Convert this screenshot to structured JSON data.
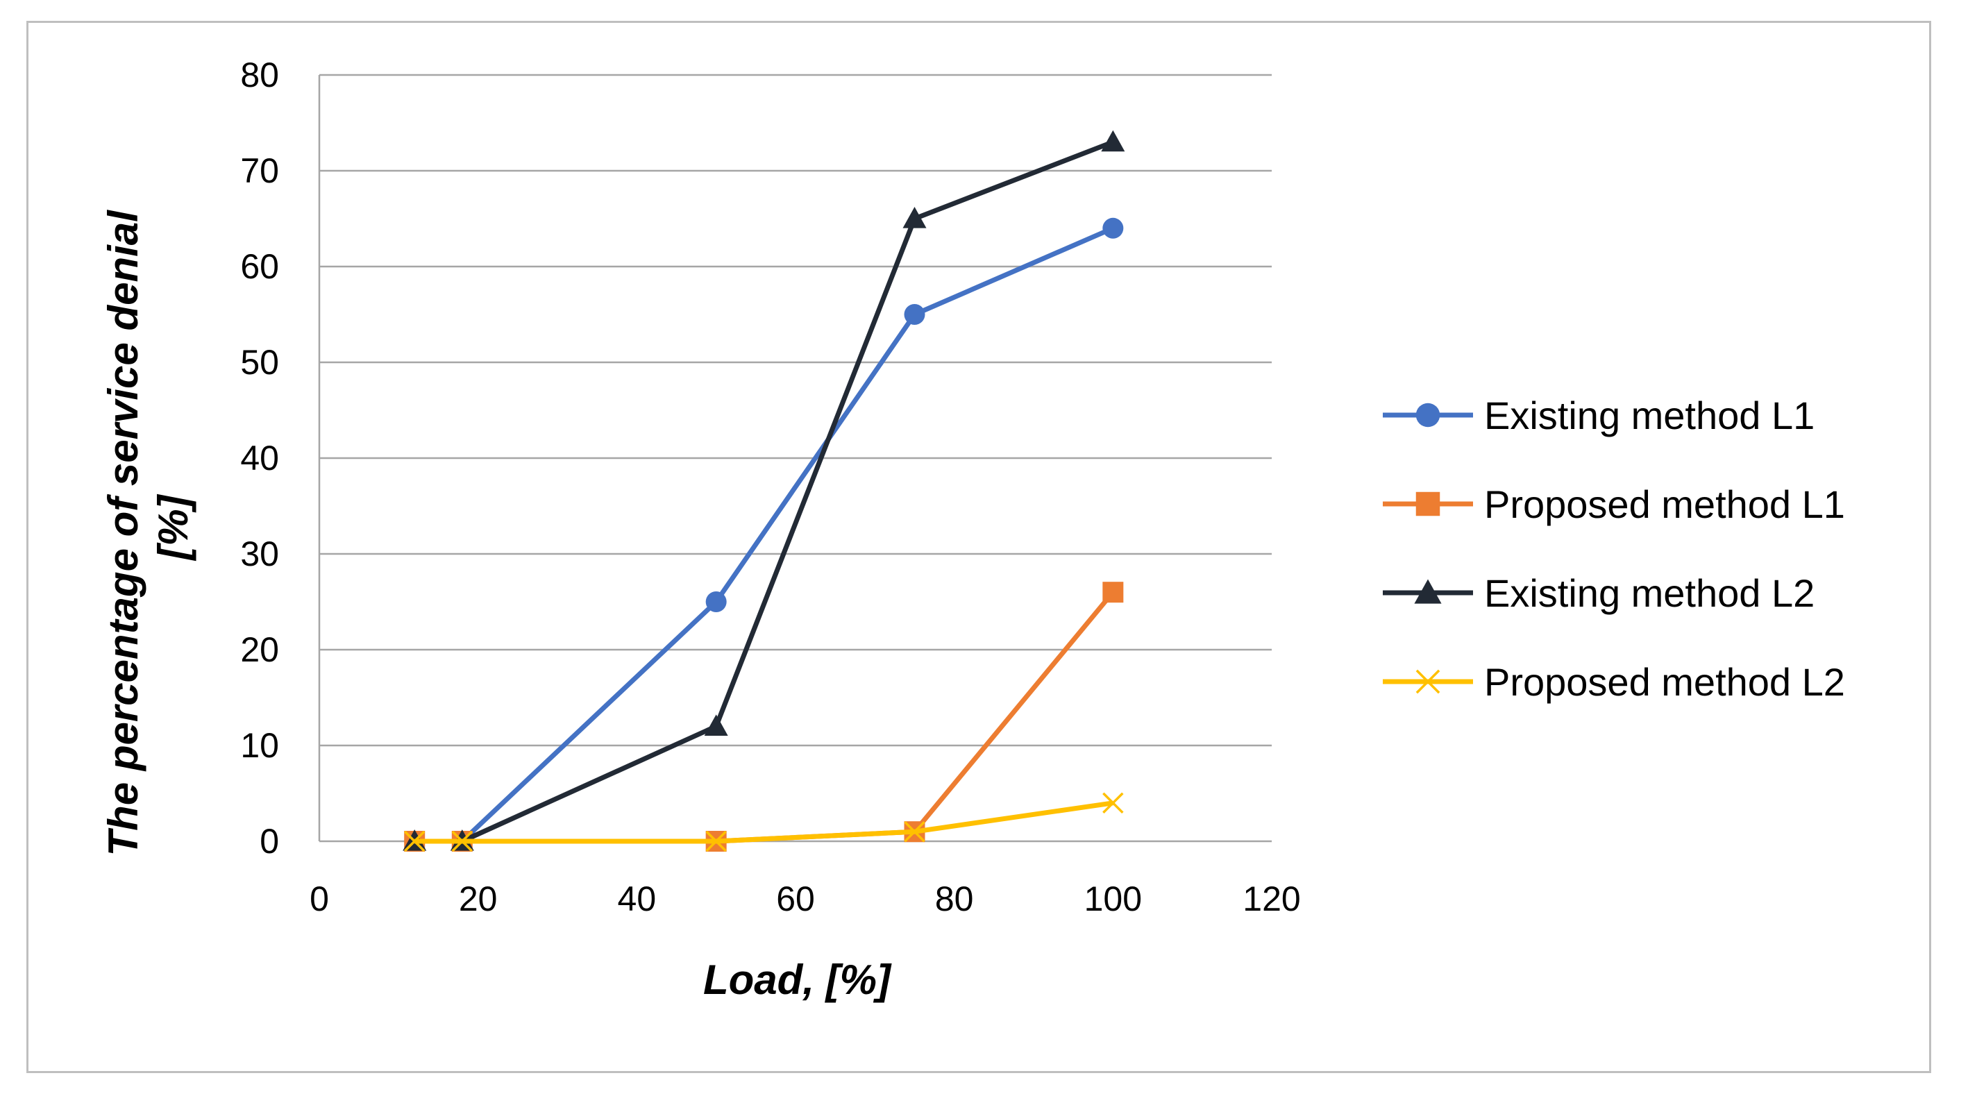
{
  "chart_data": {
    "type": "line",
    "title": "",
    "xlabel": "Load, [%]",
    "ylabel": "The percentage of service denial [%]",
    "ylabel_lines": [
      "The percentage of service denial",
      "[%]"
    ],
    "xlim": [
      0,
      120
    ],
    "ylim": [
      0,
      80
    ],
    "xticks": [
      0,
      20,
      40,
      60,
      80,
      100,
      120
    ],
    "yticks": [
      0,
      10,
      20,
      30,
      40,
      50,
      60,
      70,
      80
    ],
    "grid": "horizontal",
    "legend_position": "right",
    "series": [
      {
        "name": "Existing method L1",
        "color": "#4472C4",
        "marker": "circle",
        "x": [
          12,
          18,
          50,
          75,
          100
        ],
        "y": [
          0,
          0,
          25,
          55,
          64
        ]
      },
      {
        "name": "Proposed method L1",
        "color": "#ED7D31",
        "marker": "square",
        "x": [
          12,
          18,
          50,
          75,
          100
        ],
        "y": [
          0,
          0,
          0,
          1,
          26
        ]
      },
      {
        "name": "Existing method L2",
        "color": "#222A35",
        "marker": "triangle",
        "x": [
          12,
          18,
          50,
          75,
          100
        ],
        "y": [
          0,
          0,
          12,
          65,
          73
        ]
      },
      {
        "name": "Proposed method L2",
        "color": "#FFC000",
        "marker": "x",
        "x": [
          12,
          18,
          50,
          75,
          100
        ],
        "y": [
          0,
          0,
          0,
          1,
          4
        ]
      }
    ]
  }
}
